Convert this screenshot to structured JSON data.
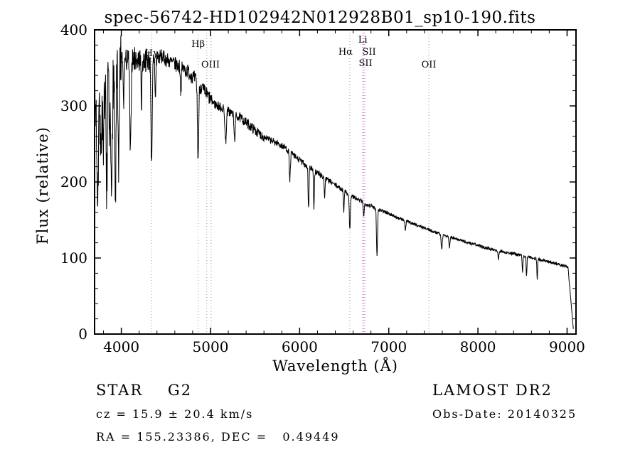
{
  "footer": {
    "class_line": "STAR    G2",
    "cz_line": "cz = 15.9 ± 20.4 km/s",
    "radec_line": "RA = 155.23386, DEC =   0.49449",
    "survey": "LAMOST DR2",
    "obs_date": "Obs-Date: 20140325"
  },
  "chart_data": {
    "type": "line",
    "title": "spec-56742-HD102942N012928B01_sp10-190.fits",
    "xlabel": "Wavelength (Å)",
    "ylabel": "Flux (relative)",
    "xlim": [
      3700,
      9100
    ],
    "ylim": [
      0,
      400
    ],
    "x_ticks": [
      4000,
      5000,
      6000,
      7000,
      8000,
      9000
    ],
    "x_minor_step": 200,
    "y_ticks": [
      0,
      100,
      200,
      300,
      400
    ],
    "y_minor_step": 20,
    "line_color": "#000000",
    "grid": false,
    "legend": "none",
    "markers": [
      {
        "label": "Hγ",
        "x": 4340,
        "lines": [
          4340
        ],
        "color": "#9a9a9a",
        "label_y": 79
      },
      {
        "label": "Hβ",
        "x": 4861,
        "lines": [
          4861
        ],
        "color": "#9a9a9a",
        "label_y": 66
      },
      {
        "label": "OIII",
        "x": 5000,
        "lines": [
          4959,
          5007
        ],
        "color": "#9a9a9a",
        "label_y": 95
      },
      {
        "label": "Hα",
        "x": 6515,
        "lines": [
          6563
        ],
        "color": "#9a9a9a",
        "label_y": 77
      },
      {
        "label": "Li",
        "x": 6708,
        "lines": [
          6708
        ],
        "color": "#cc55cc",
        "label_y": 60
      },
      {
        "label": "SII",
        "x": 6780,
        "lines": [
          6717,
          6731
        ],
        "color": "#cc55cc",
        "label_y": 77
      },
      {
        "label": "SII",
        "x": 6740,
        "lines": [],
        "color": "#cc55cc",
        "label_y": 93
      },
      {
        "label": "OII",
        "x": 7450,
        "lines": [
          7450
        ],
        "color": "#9a9a9a",
        "label_y": 95
      }
    ],
    "continuum": [
      [
        3700,
        295
      ],
      [
        3760,
        330
      ],
      [
        3820,
        335
      ],
      [
        3880,
        330
      ],
      [
        3940,
        340
      ],
      [
        4000,
        355
      ],
      [
        4060,
        360
      ],
      [
        4150,
        362
      ],
      [
        4250,
        360
      ],
      [
        4350,
        362
      ],
      [
        4450,
        365
      ],
      [
        4550,
        358
      ],
      [
        4650,
        352
      ],
      [
        4750,
        345
      ],
      [
        4850,
        332
      ],
      [
        4950,
        316
      ],
      [
        5050,
        302
      ],
      [
        5150,
        296
      ],
      [
        5250,
        290
      ],
      [
        5350,
        283
      ],
      [
        5450,
        273
      ],
      [
        5550,
        263
      ],
      [
        5650,
        256
      ],
      [
        5750,
        251
      ],
      [
        5850,
        244
      ],
      [
        5950,
        233
      ],
      [
        6050,
        224
      ],
      [
        6150,
        216
      ],
      [
        6250,
        208
      ],
      [
        6350,
        200
      ],
      [
        6450,
        192
      ],
      [
        6550,
        184
      ],
      [
        6650,
        177
      ],
      [
        6750,
        171
      ],
      [
        6850,
        166
      ],
      [
        6950,
        161
      ],
      [
        7100,
        153
      ],
      [
        7300,
        144
      ],
      [
        7500,
        135
      ],
      [
        7700,
        127
      ],
      [
        7900,
        120
      ],
      [
        8100,
        113
      ],
      [
        8300,
        108
      ],
      [
        8500,
        103
      ],
      [
        8700,
        98
      ],
      [
        8900,
        92
      ],
      [
        9100,
        86
      ]
    ],
    "absorption_lines": [
      [
        3735,
        120,
        9
      ],
      [
        3770,
        105,
        7
      ],
      [
        3798,
        115,
        7
      ],
      [
        3835,
        145,
        7
      ],
      [
        3868,
        85,
        6
      ],
      [
        3889,
        155,
        7
      ],
      [
        3934,
        165,
        6
      ],
      [
        3969,
        150,
        6
      ],
      [
        4026,
        55,
        5
      ],
      [
        4102,
        125,
        7
      ],
      [
        4227,
        55,
        5
      ],
      [
        4340,
        145,
        7
      ],
      [
        4383,
        55,
        5
      ],
      [
        4668,
        30,
        5
      ],
      [
        4861,
        100,
        7
      ],
      [
        5170,
        42,
        8
      ],
      [
        5270,
        32,
        7
      ],
      [
        5890,
        38,
        6
      ],
      [
        6100,
        55,
        5
      ],
      [
        6160,
        48,
        5
      ],
      [
        6280,
        30,
        4
      ],
      [
        6495,
        28,
        4
      ],
      [
        6563,
        45,
        6
      ],
      [
        6720,
        18,
        5
      ],
      [
        6868,
        60,
        6
      ],
      [
        7186,
        14,
        5
      ],
      [
        7594,
        18,
        7
      ],
      [
        7680,
        14,
        5
      ],
      [
        8230,
        12,
        5
      ],
      [
        8500,
        22,
        4
      ],
      [
        8545,
        27,
        4
      ],
      [
        8665,
        27,
        4
      ]
    ],
    "noise_regions": [
      [
        3700,
        4000,
        42
      ],
      [
        4000,
        4400,
        16
      ],
      [
        4400,
        5000,
        10
      ],
      [
        5000,
        5600,
        6.5
      ],
      [
        5600,
        6300,
        4.5
      ],
      [
        6300,
        7000,
        3
      ],
      [
        7000,
        8000,
        2
      ],
      [
        8000,
        9100,
        2
      ]
    ],
    "edge_drop": {
      "start": 9010,
      "end": 9075
    },
    "spec_range": [
      3700,
      9072
    ],
    "spec_step": 3
  }
}
